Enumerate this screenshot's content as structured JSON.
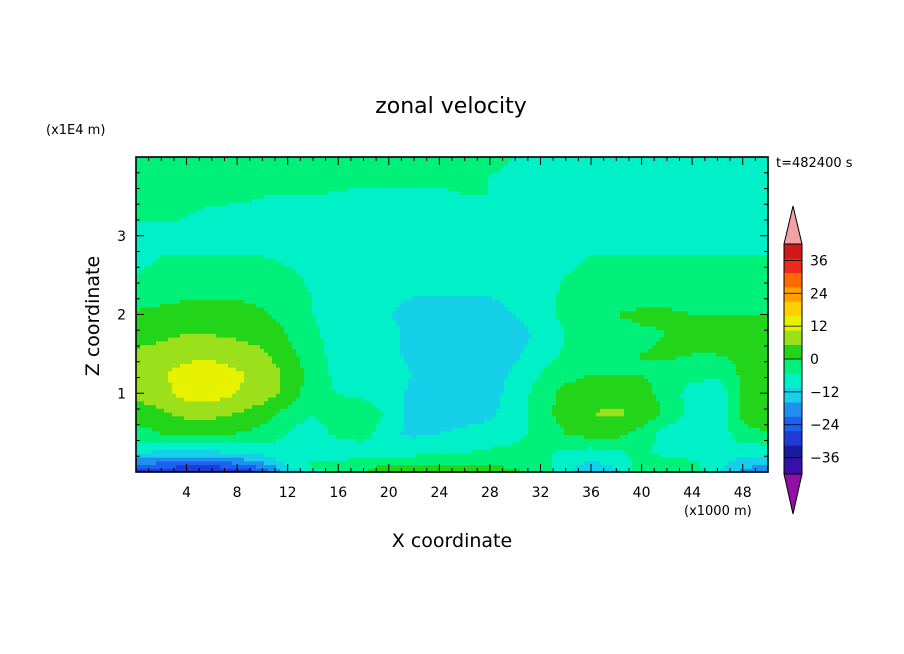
{
  "chart_data": {
    "type": "heatmap",
    "title": "zonal velocity",
    "xlabel": "X coordinate",
    "ylabel": "Z coordinate",
    "x_unit": "(x1000 m)",
    "y_unit": "(x1E4 m)",
    "time_label": "t=482400 s",
    "xlim": [
      0,
      50
    ],
    "ylim": [
      0,
      4
    ],
    "x_ticks": [
      4,
      8,
      12,
      16,
      20,
      24,
      28,
      32,
      36,
      40,
      44,
      48
    ],
    "y_ticks": [
      1,
      2,
      3
    ],
    "grid": false,
    "colorbar": {
      "ticks": [
        36,
        24,
        12,
        0,
        -12,
        -24,
        -36
      ],
      "levels": [
        -42,
        -36,
        -30,
        -24,
        -18,
        -12,
        -6,
        0,
        6,
        12,
        18,
        24,
        30,
        36,
        42
      ],
      "colors": [
        "#3a0fa8",
        "#1a1a9a",
        "#1f3ad6",
        "#1e5ef0",
        "#1f8ff0",
        "#16cfe8",
        "#00f0c8",
        "#00f07a",
        "#22d41a",
        "#9be01a",
        "#e6f200",
        "#ffd000",
        "#ffa000",
        "#ff6a00",
        "#ee2a1e",
        "#d01818"
      ],
      "under_color": "#9010a8",
      "over_color": "#f2a0a4"
    },
    "field": {
      "x": [
        0,
        2,
        4,
        6,
        8,
        10,
        12,
        14,
        16,
        18,
        20,
        22,
        24,
        26,
        28,
        30,
        32,
        34,
        36,
        38,
        40,
        42,
        44,
        46,
        48,
        50
      ],
      "z": [
        0.0,
        0.1,
        0.25,
        0.5,
        0.75,
        1.0,
        1.25,
        1.5,
        1.75,
        2.0,
        2.25,
        2.5,
        2.75,
        3.0,
        3.25,
        3.5,
        3.75,
        4.0
      ],
      "u": [
        [
          -27,
          -30,
          -32,
          -32,
          -30,
          -24,
          -10,
          -4,
          4,
          6,
          8,
          9,
          10,
          9,
          8,
          7,
          3,
          -4,
          -12,
          -8,
          4,
          6,
          4,
          -6,
          -14,
          -20
        ],
        [
          -18,
          -20,
          -22,
          -22,
          -19,
          -14,
          -5,
          2,
          4,
          5,
          6,
          6,
          7,
          6,
          6,
          5,
          2,
          -3,
          -8,
          -4,
          3,
          4,
          2,
          -4,
          -9,
          -12
        ],
        [
          -6,
          -7,
          -7,
          -7,
          -6,
          -4,
          -2,
          -3,
          -6,
          -4,
          -3,
          -2,
          -1,
          0,
          1,
          2,
          1,
          -1,
          -3,
          -1,
          1,
          -2,
          -3,
          -3,
          -4,
          -4
        ],
        [
          4,
          6,
          7,
          7,
          6,
          4,
          0,
          -4,
          2,
          3,
          -5,
          -7,
          -6,
          -5,
          -4,
          -2,
          2,
          6,
          9,
          8,
          4,
          -3,
          -6,
          -4,
          4,
          6
        ],
        [
          8,
          11,
          14,
          14,
          12,
          9,
          4,
          0,
          5,
          6,
          -2,
          -8,
          -9,
          -8,
          -7,
          -3,
          3,
          9,
          12,
          13,
          11,
          5,
          -2,
          -6,
          8,
          10
        ],
        [
          14,
          16,
          20,
          21,
          18,
          15,
          10,
          2,
          0,
          -2,
          -4,
          -7,
          -8,
          -8,
          -8,
          -4,
          3,
          8,
          10,
          10,
          8,
          4,
          -3,
          -5,
          8,
          12
        ],
        [
          15,
          17,
          21,
          22,
          19,
          16,
          11,
          4,
          -2,
          -4,
          -5,
          -6,
          -7,
          -8,
          -8,
          -5,
          0,
          4,
          6,
          6,
          6,
          4,
          2,
          2,
          7,
          10
        ],
        [
          13,
          14,
          16,
          16,
          15,
          13,
          8,
          2,
          -2,
          -4,
          -5,
          -7,
          -8,
          -9,
          -9,
          -7,
          -3,
          1,
          4,
          5,
          6,
          7,
          6,
          6,
          7,
          8
        ],
        [
          10,
          11,
          12,
          12,
          11,
          10,
          6,
          1,
          -2,
          -4,
          -5,
          -7,
          -9,
          -10,
          -9,
          -8,
          -5,
          0,
          3,
          4,
          5,
          6,
          6,
          6,
          7,
          7
        ],
        [
          7,
          8,
          9,
          9,
          9,
          7,
          4,
          0,
          -2,
          -4,
          -6,
          -7,
          -8,
          -8,
          -7,
          -6,
          -3,
          2,
          5,
          6,
          7,
          7,
          6,
          6,
          6,
          6
        ],
        [
          3,
          4,
          5,
          5,
          5,
          4,
          2,
          0,
          -3,
          -4,
          -5,
          -6,
          -6,
          -6,
          -6,
          -5,
          -2,
          1,
          3,
          4,
          4,
          4,
          4,
          4,
          4,
          4
        ],
        [
          0,
          1,
          2,
          2,
          2,
          2,
          1,
          -1,
          -3,
          -4,
          -4,
          -5,
          -5,
          -5,
          -5,
          -4,
          -2,
          0,
          1,
          1,
          1,
          1,
          1,
          1,
          1,
          1
        ],
        [
          -1,
          0,
          0,
          0,
          0,
          0,
          -1,
          -2,
          -3,
          -3,
          -4,
          -4,
          -4,
          -4,
          -4,
          -4,
          -2,
          -1,
          0,
          0,
          0,
          0,
          0,
          0,
          0,
          0
        ],
        [
          -2,
          -2,
          -2,
          -2,
          -2,
          -2,
          -2,
          -2,
          -3,
          -3,
          -3,
          -3,
          -3,
          -3,
          -3,
          -3,
          -3,
          -2,
          -2,
          -2,
          -2,
          -2,
          -2,
          -2,
          -2,
          -2
        ],
        [
          1,
          1,
          0,
          -1,
          -2,
          -2,
          -2,
          -2,
          -2,
          -2,
          -2,
          -2,
          -2,
          -1,
          -1,
          -1,
          -1,
          -1,
          -2,
          -2,
          -2,
          -2,
          -2,
          -3,
          -2,
          -1
        ],
        [
          2,
          2,
          1,
          1,
          1,
          0,
          0,
          0,
          -1,
          -1,
          -1,
          -1,
          -1,
          0,
          0,
          -1,
          -1,
          -2,
          -2,
          -2,
          -2,
          -2,
          -2,
          -2,
          -2,
          -2
        ],
        [
          2,
          2,
          2,
          3,
          4,
          4,
          4,
          3,
          2,
          1,
          1,
          1,
          1,
          1,
          0,
          -1,
          -1,
          -2,
          -2,
          -2,
          -2,
          -2,
          -2,
          -2,
          -2,
          -2
        ],
        [
          3,
          3,
          3,
          3,
          3,
          4,
          4,
          4,
          3,
          3,
          2,
          2,
          1,
          1,
          1,
          0,
          -1,
          -1,
          -1,
          -1,
          -1,
          -1,
          -1,
          -1,
          -1,
          -1
        ]
      ]
    }
  }
}
